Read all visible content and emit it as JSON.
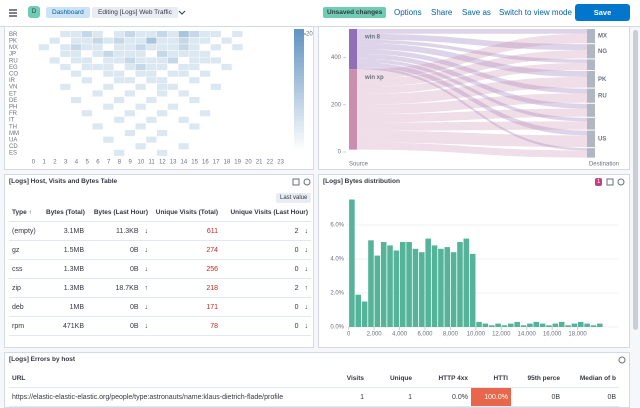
{
  "header": {
    "avatar": "D",
    "breadcrumbs": [
      "Dashboard",
      "Editing [Logs] Web Traffic"
    ],
    "badge": "Unsaved changes",
    "menu": [
      "Options",
      "Share",
      "Save as",
      "Switch to view mode"
    ],
    "save": "Save"
  },
  "heatmap": {
    "type": "heatmap",
    "rows": [
      "BR",
      "PK",
      "MX",
      "JP",
      "RU",
      "EG",
      "CO",
      "IR",
      "VN",
      "ET",
      "DE",
      "PH",
      "FR",
      "IT",
      "TH",
      "MM",
      "UA",
      "CD",
      "ES"
    ],
    "columns": [
      0,
      1,
      2,
      3,
      4,
      5,
      6,
      7,
      8,
      9,
      10,
      11,
      12,
      13,
      14,
      15,
      16,
      17,
      18,
      19,
      20,
      21,
      22,
      23
    ],
    "values": [
      [
        0,
        0,
        0,
        5,
        5,
        8,
        5,
        0,
        5,
        8,
        5,
        5,
        8,
        5,
        12,
        8,
        5,
        5,
        0,
        5,
        0,
        0,
        0,
        0
      ],
      [
        0,
        0,
        5,
        0,
        5,
        5,
        8,
        5,
        8,
        5,
        5,
        12,
        5,
        5,
        8,
        5,
        5,
        0,
        5,
        0,
        0,
        0,
        0,
        0
      ],
      [
        0,
        5,
        0,
        5,
        8,
        5,
        5,
        0,
        5,
        5,
        8,
        5,
        5,
        5,
        8,
        5,
        0,
        5,
        0,
        5,
        0,
        0,
        0,
        0
      ],
      [
        0,
        0,
        0,
        5,
        5,
        0,
        5,
        8,
        5,
        5,
        5,
        0,
        8,
        5,
        5,
        5,
        5,
        0,
        0,
        0,
        0,
        0,
        0,
        0
      ],
      [
        0,
        0,
        5,
        0,
        5,
        5,
        0,
        5,
        5,
        8,
        5,
        5,
        5,
        8,
        0,
        5,
        5,
        5,
        0,
        0,
        0,
        0,
        0,
        0
      ],
      [
        0,
        0,
        0,
        5,
        0,
        5,
        5,
        5,
        0,
        5,
        8,
        5,
        5,
        0,
        5,
        5,
        0,
        0,
        5,
        0,
        0,
        0,
        0,
        0
      ],
      [
        0,
        0,
        0,
        0,
        5,
        0,
        0,
        5,
        5,
        0,
        5,
        5,
        0,
        5,
        5,
        0,
        5,
        0,
        0,
        0,
        0,
        0,
        0,
        0
      ],
      [
        0,
        0,
        0,
        0,
        0,
        5,
        0,
        0,
        5,
        5,
        0,
        5,
        5,
        0,
        0,
        5,
        0,
        0,
        0,
        0,
        0,
        0,
        0,
        0
      ],
      [
        0,
        0,
        0,
        5,
        0,
        0,
        0,
        5,
        0,
        0,
        5,
        0,
        5,
        5,
        0,
        0,
        0,
        5,
        0,
        0,
        0,
        0,
        0,
        0
      ],
      [
        0,
        0,
        0,
        0,
        0,
        0,
        5,
        0,
        0,
        5,
        0,
        0,
        5,
        0,
        5,
        0,
        0,
        0,
        0,
        0,
        0,
        0,
        0,
        0
      ],
      [
        0,
        0,
        0,
        0,
        5,
        0,
        0,
        0,
        5,
        0,
        0,
        5,
        0,
        0,
        0,
        5,
        0,
        0,
        0,
        0,
        0,
        0,
        0,
        0
      ],
      [
        0,
        0,
        0,
        0,
        0,
        0,
        0,
        5,
        0,
        0,
        5,
        0,
        0,
        5,
        0,
        0,
        0,
        0,
        0,
        0,
        0,
        0,
        0,
        0
      ],
      [
        0,
        0,
        0,
        0,
        0,
        5,
        0,
        0,
        0,
        5,
        0,
        0,
        5,
        0,
        0,
        0,
        5,
        0,
        0,
        0,
        0,
        0,
        0,
        0
      ],
      [
        0,
        0,
        0,
        0,
        0,
        0,
        0,
        0,
        5,
        0,
        0,
        5,
        0,
        0,
        5,
        0,
        0,
        0,
        0,
        0,
        0,
        0,
        0,
        0
      ],
      [
        0,
        0,
        0,
        0,
        0,
        0,
        5,
        0,
        0,
        0,
        5,
        0,
        0,
        0,
        0,
        5,
        0,
        0,
        0,
        0,
        0,
        0,
        0,
        0
      ],
      [
        0,
        0,
        0,
        0,
        0,
        0,
        0,
        0,
        0,
        5,
        0,
        0,
        5,
        0,
        0,
        0,
        0,
        0,
        0,
        0,
        0,
        0,
        0,
        0
      ],
      [
        0,
        0,
        0,
        0,
        0,
        0,
        0,
        5,
        0,
        0,
        0,
        5,
        0,
        0,
        0,
        0,
        0,
        0,
        0,
        0,
        0,
        0,
        0,
        0
      ],
      [
        0,
        0,
        0,
        0,
        0,
        0,
        0,
        0,
        0,
        0,
        5,
        0,
        0,
        0,
        5,
        0,
        0,
        0,
        0,
        0,
        0,
        0,
        0,
        0
      ],
      [
        0,
        0,
        0,
        0,
        0,
        0,
        0,
        0,
        5,
        0,
        0,
        0,
        5,
        0,
        0,
        0,
        0,
        0,
        0,
        0,
        0,
        0,
        0,
        0
      ]
    ],
    "color": "#6092c0",
    "color_lim": [
      0,
      20
    ],
    "color_ticks": [
      20
    ]
  },
  "sankey": {
    "type": "sankey",
    "ylim": [
      0,
      520
    ],
    "yticks": [
      400,
      200,
      0
    ],
    "sources": [
      "win 8",
      "win xp"
    ],
    "source_colors": [
      "#9170b8",
      "#ca8eae"
    ],
    "targets": [
      "MX",
      "NG",
      null,
      "PK",
      "RU",
      null,
      null,
      "US",
      null
    ],
    "links": [
      [
        0,
        0,
        20
      ],
      [
        0,
        1,
        25
      ],
      [
        0,
        2,
        15
      ],
      [
        0,
        3,
        25
      ],
      [
        0,
        4,
        20
      ],
      [
        0,
        5,
        20
      ],
      [
        0,
        6,
        15
      ],
      [
        0,
        7,
        20
      ],
      [
        0,
        8,
        10
      ],
      [
        1,
        0,
        40
      ],
      [
        1,
        1,
        35
      ],
      [
        1,
        2,
        30
      ],
      [
        1,
        3,
        45
      ],
      [
        1,
        4,
        40
      ],
      [
        1,
        5,
        35
      ],
      [
        1,
        6,
        35
      ],
      [
        1,
        7,
        50
      ],
      [
        1,
        8,
        30
      ]
    ],
    "source_label": "Source",
    "target_label": "Destination"
  },
  "table": {
    "title": "[Logs] Host, Visits and Bytes Table",
    "button": "Last value",
    "columns": [
      "Type ↑",
      "Bytes (Total)",
      "Bytes (Last Hour)",
      "Unique Visits (Total)",
      "Unique Visits (Last Hour)"
    ],
    "rows": [
      [
        "(empty)",
        "3.1MB",
        "11.3KB",
        "↓",
        611,
        2,
        "↓"
      ],
      [
        "gz",
        "1.5MB",
        "0B",
        "↓",
        274,
        0,
        "↓"
      ],
      [
        "css",
        "1.3MB",
        "0B",
        "↓",
        256,
        0,
        "↓"
      ],
      [
        "zip",
        "1.3MB",
        "18.7KB",
        "↑",
        218,
        2,
        "↑"
      ],
      [
        "deb",
        "1MB",
        "0B",
        "↓",
        171,
        0,
        "↓"
      ],
      [
        "rpm",
        "471KB",
        "0B",
        "↓",
        78,
        0,
        "↓"
      ]
    ]
  },
  "histogram": {
    "type": "histogram",
    "title": "[Logs] Bytes distribution",
    "badge": "1",
    "color": "#54b399",
    "bins": [
      0,
      500,
      1000,
      1500,
      2000,
      2500,
      3000,
      3500,
      4000,
      4500,
      5000,
      5500,
      6000,
      6500,
      7000,
      7500,
      8000,
      8500,
      9000,
      9500,
      10000,
      10500,
      11000,
      11500,
      12000,
      12500,
      13000,
      13500,
      14000,
      14500,
      15000,
      15500,
      16000,
      16500,
      17000,
      17500,
      18000,
      18500,
      19000,
      19500,
      20000
    ],
    "values": [
      7.5,
      1.9,
      1.5,
      5.1,
      4.2,
      5.0,
      4.8,
      4.5,
      5.0,
      5.0,
      4.6,
      4.4,
      5.2,
      4.8,
      4.6,
      4.7,
      4.4,
      5.0,
      5.2,
      4.3,
      0.3,
      0.2,
      0.1,
      0.2,
      0.1,
      0.2,
      0.3,
      0.1,
      0.2,
      0.3,
      0.2,
      0.1,
      0.2,
      0.3,
      0.1,
      0.2,
      0.3,
      0.2,
      0.1,
      0.2
    ],
    "xlim": [
      -1000,
      20000
    ],
    "ylim": [
      0,
      7.8
    ],
    "xticks": [
      0,
      {
        "value": 2000,
        "label": "2,000"
      },
      {
        "value": 4000,
        "label": "4,000"
      },
      {
        "value": 6000,
        "label": "6,000"
      },
      {
        "value": 8000,
        "label": "8,000"
      },
      {
        "value": 10000,
        "label": "10,000"
      },
      {
        "value": 12000,
        "label": "12,000"
      },
      {
        "value": 14000,
        "label": "14,000"
      },
      {
        "value": 16000,
        "label": "16,000"
      },
      {
        "value": 18000,
        "label": "18,000"
      }
    ],
    "yticks": [
      {
        "value": 0,
        "label": "0.0%"
      },
      {
        "value": 2,
        "label": "2.0%"
      },
      {
        "value": 4,
        "label": "4.0%"
      },
      {
        "value": 6,
        "label": "6.0%"
      }
    ],
    "grid": true
  },
  "errors": {
    "title": "[Logs] Errors by host",
    "columns": [
      "URL",
      "Visits",
      "Unique",
      "HTTP 4xx",
      "HTTI",
      "95th perce",
      "Median of b"
    ],
    "rows": [
      [
        "https://elastic-elastic-elastic.org/people/type:astronauts/name:klaus-dietrich-flade/profile",
        1,
        1,
        "0.0%",
        "100.0%",
        "0B",
        "0B"
      ]
    ]
  }
}
